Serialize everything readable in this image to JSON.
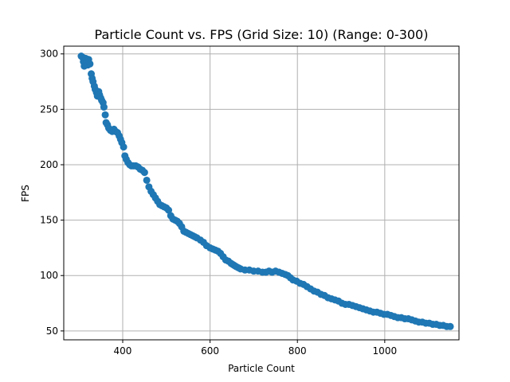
{
  "chart_data": {
    "type": "scatter",
    "title": "Particle Count vs. FPS (Grid Size: 10) (Range: 0-300)",
    "xlabel": "Particle Count",
    "ylabel": "FPS",
    "xlim": [
      265,
      1170
    ],
    "ylim": [
      42,
      307
    ],
    "xticks": [
      400,
      600,
      800,
      1000
    ],
    "yticks": [
      50,
      100,
      150,
      200,
      250,
      300
    ],
    "grid": true,
    "marker_color": "#1f77b4",
    "series": [
      {
        "points": [
          [
            305,
            298
          ],
          [
            308,
            297
          ],
          [
            310,
            293
          ],
          [
            312,
            289
          ],
          [
            315,
            296
          ],
          [
            317,
            292
          ],
          [
            320,
            290
          ],
          [
            322,
            295
          ],
          [
            325,
            291
          ],
          [
            328,
            282
          ],
          [
            330,
            278
          ],
          [
            332,
            275
          ],
          [
            335,
            271
          ],
          [
            337,
            268
          ],
          [
            340,
            265
          ],
          [
            342,
            262
          ],
          [
            345,
            266
          ],
          [
            347,
            263
          ],
          [
            350,
            260
          ],
          [
            352,
            258
          ],
          [
            355,
            256
          ],
          [
            357,
            252
          ],
          [
            360,
            245
          ],
          [
            362,
            238
          ],
          [
            365,
            236
          ],
          [
            368,
            233
          ],
          [
            372,
            231
          ],
          [
            376,
            230
          ],
          [
            380,
            232
          ],
          [
            384,
            230
          ],
          [
            388,
            229
          ],
          [
            392,
            226
          ],
          [
            395,
            223
          ],
          [
            398,
            220
          ],
          [
            402,
            216
          ],
          [
            405,
            208
          ],
          [
            408,
            205
          ],
          [
            412,
            202
          ],
          [
            416,
            200
          ],
          [
            420,
            199
          ],
          [
            425,
            199
          ],
          [
            430,
            199
          ],
          [
            435,
            198
          ],
          [
            440,
            196
          ],
          [
            445,
            195
          ],
          [
            450,
            193
          ],
          [
            455,
            186
          ],
          [
            460,
            180
          ],
          [
            465,
            176
          ],
          [
            470,
            173
          ],
          [
            475,
            170
          ],
          [
            480,
            167
          ],
          [
            485,
            164
          ],
          [
            490,
            163
          ],
          [
            495,
            162
          ],
          [
            500,
            161
          ],
          [
            505,
            159
          ],
          [
            510,
            154
          ],
          [
            515,
            151
          ],
          [
            520,
            150
          ],
          [
            525,
            149
          ],
          [
            530,
            147
          ],
          [
            535,
            144
          ],
          [
            540,
            140
          ],
          [
            545,
            139
          ],
          [
            550,
            138
          ],
          [
            555,
            137
          ],
          [
            560,
            136
          ],
          [
            565,
            135
          ],
          [
            570,
            134
          ],
          [
            578,
            132
          ],
          [
            585,
            130
          ],
          [
            592,
            127
          ],
          [
            600,
            125
          ],
          [
            606,
            124
          ],
          [
            612,
            123
          ],
          [
            618,
            122
          ],
          [
            624,
            120
          ],
          [
            630,
            117
          ],
          [
            636,
            114
          ],
          [
            642,
            113
          ],
          [
            648,
            111
          ],
          [
            652,
            110
          ],
          [
            656,
            109
          ],
          [
            660,
            108
          ],
          [
            665,
            107
          ],
          [
            670,
            106
          ],
          [
            680,
            105
          ],
          [
            690,
            105
          ],
          [
            700,
            104
          ],
          [
            710,
            104
          ],
          [
            720,
            103
          ],
          [
            728,
            103
          ],
          [
            735,
            104
          ],
          [
            742,
            103
          ],
          [
            750,
            104
          ],
          [
            758,
            103
          ],
          [
            765,
            102
          ],
          [
            772,
            101
          ],
          [
            778,
            100
          ],
          [
            784,
            98
          ],
          [
            790,
            96
          ],
          [
            798,
            95
          ],
          [
            806,
            93
          ],
          [
            814,
            92
          ],
          [
            822,
            90
          ],
          [
            830,
            88
          ],
          [
            838,
            86
          ],
          [
            846,
            85
          ],
          [
            854,
            83
          ],
          [
            862,
            82
          ],
          [
            870,
            80
          ],
          [
            878,
            79
          ],
          [
            886,
            78
          ],
          [
            894,
            77
          ],
          [
            902,
            75
          ],
          [
            910,
            74
          ],
          [
            918,
            74
          ],
          [
            926,
            73
          ],
          [
            934,
            72
          ],
          [
            942,
            71
          ],
          [
            950,
            70
          ],
          [
            958,
            69
          ],
          [
            966,
            68
          ],
          [
            974,
            67
          ],
          [
            982,
            67
          ],
          [
            990,
            66
          ],
          [
            998,
            65
          ],
          [
            1006,
            65
          ],
          [
            1014,
            64
          ],
          [
            1022,
            63
          ],
          [
            1030,
            62
          ],
          [
            1038,
            62
          ],
          [
            1046,
            61
          ],
          [
            1054,
            61
          ],
          [
            1062,
            60
          ],
          [
            1070,
            59
          ],
          [
            1078,
            58
          ],
          [
            1086,
            58
          ],
          [
            1094,
            57
          ],
          [
            1102,
            57
          ],
          [
            1110,
            56
          ],
          [
            1118,
            56
          ],
          [
            1126,
            55
          ],
          [
            1134,
            55
          ],
          [
            1142,
            54
          ],
          [
            1150,
            54
          ]
        ]
      }
    ]
  }
}
